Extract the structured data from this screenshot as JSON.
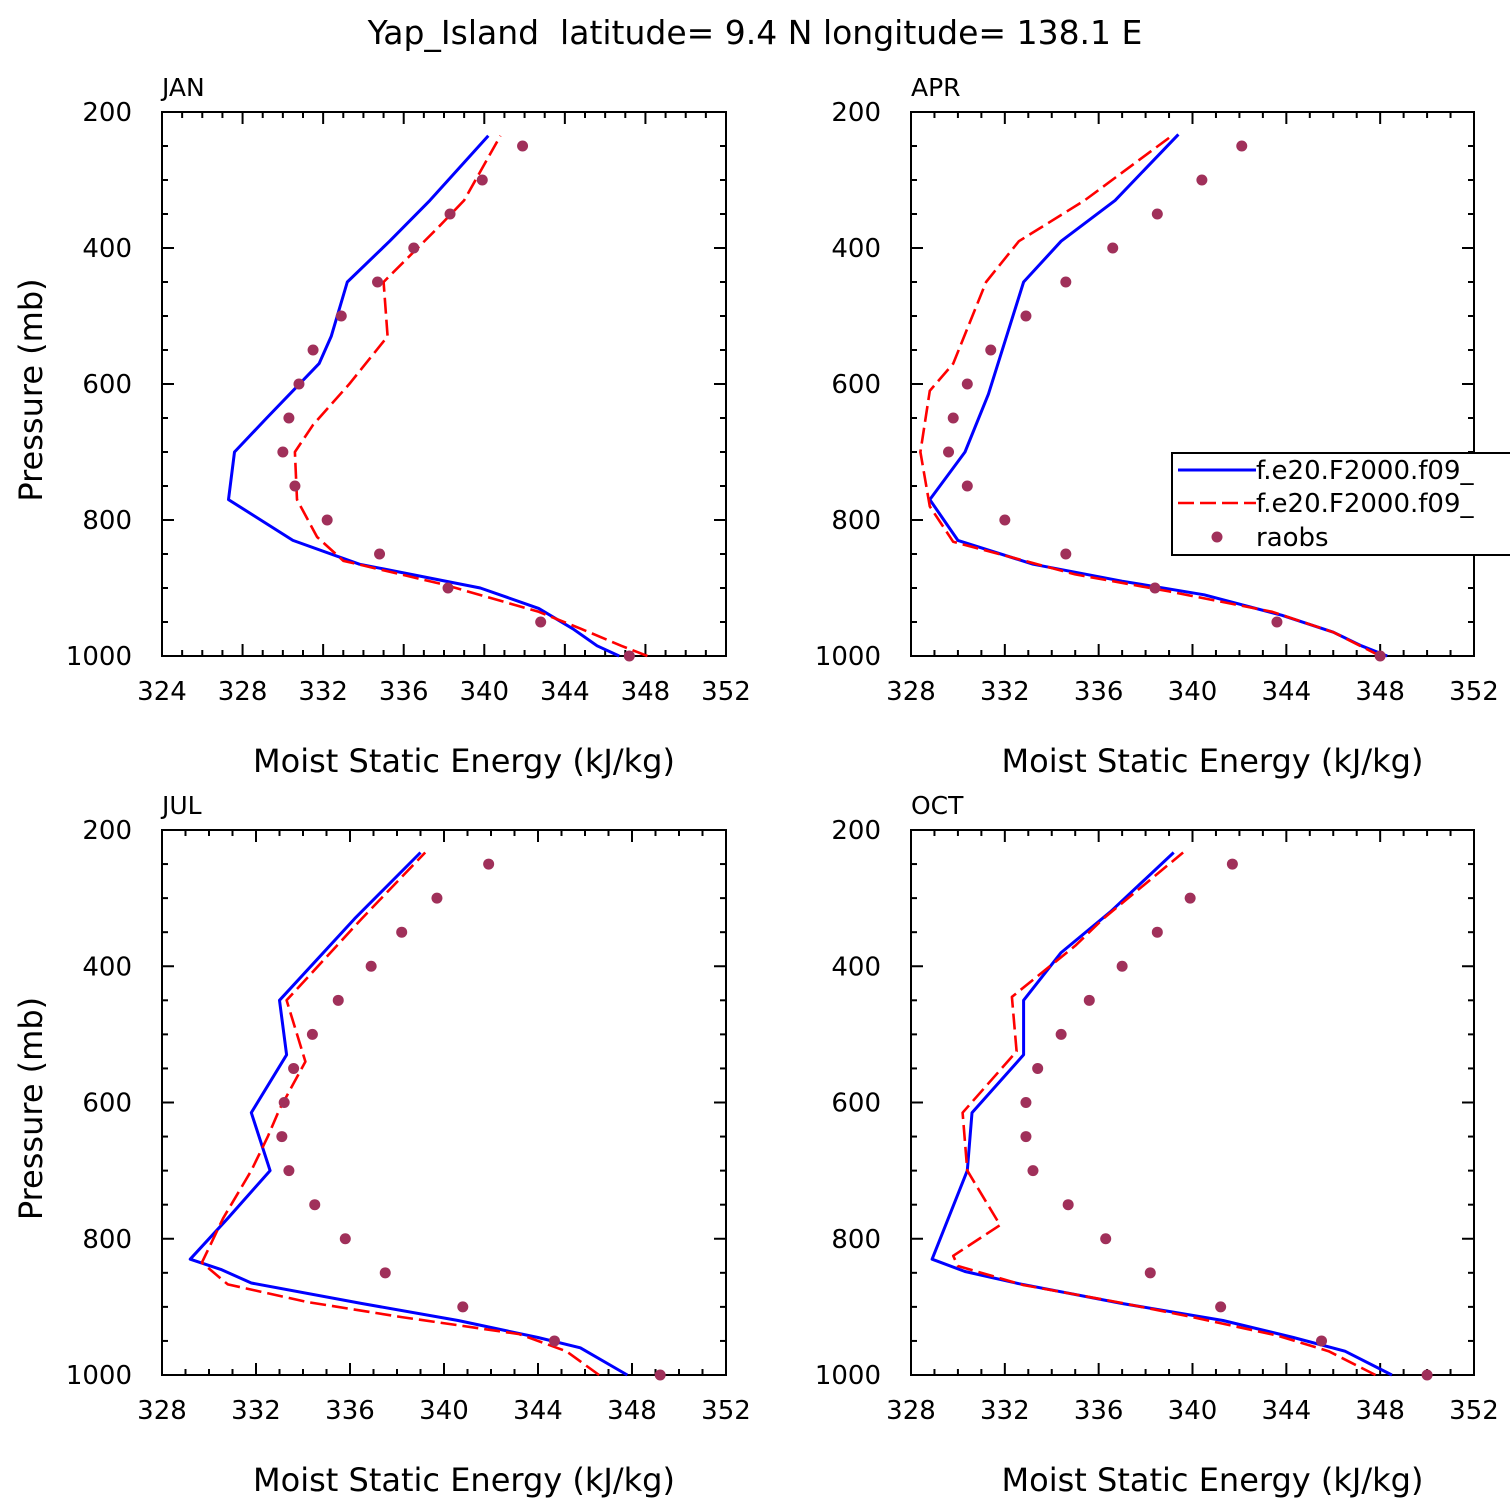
{
  "figure_title": "Yap_Island  latitude= 9.4 N longitude= 138.1 E",
  "colors": {
    "model1": "#0000ff",
    "model2": "#ff0000",
    "obs": "#a0305a"
  },
  "legend": {
    "placement": "right of APR panel",
    "entries": [
      "f.e20.F2000.f09_",
      "f.e20.F2000.f09_",
      "raobs"
    ]
  },
  "chart_data": [
    {
      "type": "line",
      "title": "JAN",
      "xlabel": "Moist Static Energy (kJ/kg)",
      "ylabel": "Pressure (mb)",
      "xlim": [
        324,
        352
      ],
      "ylim": [
        1000,
        200
      ],
      "xticks": [
        324,
        328,
        332,
        336,
        340,
        344,
        348,
        352
      ],
      "yticks": [
        200,
        400,
        600,
        800,
        1000
      ],
      "series": [
        {
          "name": "f.e20.F2000.f09_",
          "style": "solid",
          "points": [
            [
              346.7,
              1000
            ],
            [
              345.6,
              985
            ],
            [
              344.4,
              960
            ],
            [
              342.7,
              930
            ],
            [
              339.8,
              900
            ],
            [
              333.8,
              865
            ],
            [
              330.5,
              830
            ],
            [
              327.3,
              770
            ],
            [
              327.6,
              700
            ],
            [
              329.2,
              650
            ],
            [
              330.5,
              610
            ],
            [
              331.8,
              570
            ],
            [
              332.4,
              530
            ],
            [
              333.2,
              450
            ],
            [
              335.3,
              390
            ],
            [
              337.3,
              330
            ],
            [
              340.2,
              235
            ]
          ]
        },
        {
          "name": "f.e20.F2000.f09_",
          "style": "dashed",
          "points": [
            [
              348.1,
              1000
            ],
            [
              346.8,
              985
            ],
            [
              344.8,
              960
            ],
            [
              342.7,
              935
            ],
            [
              338.0,
              895
            ],
            [
              333.0,
              860
            ],
            [
              331.7,
              825
            ],
            [
              330.7,
              770
            ],
            [
              330.6,
              700
            ],
            [
              331.5,
              660
            ],
            [
              333.3,
              600
            ],
            [
              335.2,
              530
            ],
            [
              335.0,
              450
            ],
            [
              337.7,
              370
            ],
            [
              339.0,
              330
            ],
            [
              340.8,
              235
            ]
          ]
        },
        {
          "name": "raobs",
          "style": "dots",
          "points": [
            [
              347.2,
              1000
            ],
            [
              342.8,
              950
            ],
            [
              338.2,
              900
            ],
            [
              334.8,
              850
            ],
            [
              332.2,
              800
            ],
            [
              330.6,
              750
            ],
            [
              330.0,
              700
            ],
            [
              330.3,
              650
            ],
            [
              330.8,
              600
            ],
            [
              331.5,
              550
            ],
            [
              332.9,
              500
            ],
            [
              334.7,
              450
            ],
            [
              336.5,
              400
            ],
            [
              338.3,
              350
            ],
            [
              339.9,
              300
            ],
            [
              341.9,
              250
            ]
          ]
        }
      ]
    },
    {
      "type": "line",
      "title": "APR",
      "xlabel": "Moist Static Energy (kJ/kg)",
      "ylabel": "",
      "xlim": [
        328,
        352
      ],
      "ylim": [
        1000,
        200
      ],
      "xticks": [
        328,
        332,
        336,
        340,
        344,
        348,
        352
      ],
      "yticks": [
        200,
        400,
        600,
        800,
        1000
      ],
      "series": [
        {
          "name": "f.e20.F2000.f09_",
          "style": "solid",
          "points": [
            [
              348.3,
              1000
            ],
            [
              347.2,
              985
            ],
            [
              346.0,
              965
            ],
            [
              343.8,
              940
            ],
            [
              340.5,
              910
            ],
            [
              337.0,
              890
            ],
            [
              333.2,
              865
            ],
            [
              330.0,
              830
            ],
            [
              328.8,
              770
            ],
            [
              330.3,
              700
            ],
            [
              331.3,
              615
            ],
            [
              332.8,
              450
            ],
            [
              334.4,
              390
            ],
            [
              336.7,
              330
            ],
            [
              339.4,
              233
            ]
          ]
        },
        {
          "name": "f.e20.F2000.f09_",
          "style": "dashed",
          "points": [
            [
              348.0,
              1000
            ],
            [
              346.0,
              965
            ],
            [
              343.4,
              935
            ],
            [
              339.0,
              905
            ],
            [
              335.0,
              880
            ],
            [
              332.3,
              855
            ],
            [
              329.8,
              832
            ],
            [
              328.8,
              780
            ],
            [
              328.4,
              700
            ],
            [
              328.8,
              610
            ],
            [
              329.8,
              570
            ],
            [
              331.2,
              450
            ],
            [
              332.6,
              390
            ],
            [
              335.4,
              330
            ],
            [
              339.2,
              233
            ]
          ]
        },
        {
          "name": "raobs",
          "style": "dots",
          "points": [
            [
              348.0,
              1000
            ],
            [
              343.6,
              950
            ],
            [
              338.4,
              900
            ],
            [
              334.6,
              850
            ],
            [
              332.0,
              800
            ],
            [
              330.4,
              750
            ],
            [
              329.6,
              700
            ],
            [
              329.8,
              650
            ],
            [
              330.4,
              600
            ],
            [
              331.4,
              550
            ],
            [
              332.9,
              500
            ],
            [
              334.6,
              450
            ],
            [
              336.6,
              400
            ],
            [
              338.5,
              350
            ],
            [
              340.4,
              300
            ],
            [
              342.1,
              250
            ]
          ]
        }
      ]
    },
    {
      "type": "line",
      "title": "JUL",
      "xlabel": "Moist Static Energy (kJ/kg)",
      "ylabel": "Pressure (mb)",
      "xlim": [
        328,
        352
      ],
      "ylim": [
        1000,
        200
      ],
      "xticks": [
        328,
        332,
        336,
        340,
        344,
        348,
        352
      ],
      "yticks": [
        200,
        400,
        600,
        800,
        1000
      ],
      "series": [
        {
          "name": "f.e20.F2000.f09_",
          "style": "solid",
          "points": [
            [
              347.8,
              1000
            ],
            [
              345.8,
              960
            ],
            [
              344.0,
              945
            ],
            [
              340.6,
              920
            ],
            [
              336.5,
              895
            ],
            [
              331.8,
              865
            ],
            [
              330.5,
              845
            ],
            [
              329.2,
              830
            ],
            [
              330.8,
              770
            ],
            [
              332.6,
              700
            ],
            [
              331.8,
              615
            ],
            [
              333.3,
              530
            ],
            [
              333.0,
              450
            ],
            [
              336.2,
              330
            ],
            [
              339.0,
              233
            ]
          ]
        },
        {
          "name": "f.e20.F2000.f09_",
          "style": "dashed",
          "points": [
            [
              346.6,
              1000
            ],
            [
              345.2,
              965
            ],
            [
              343.2,
              940
            ],
            [
              338.2,
              915
            ],
            [
              334.2,
              893
            ],
            [
              330.8,
              867
            ],
            [
              329.7,
              835
            ],
            [
              330.6,
              770
            ],
            [
              331.8,
              700
            ],
            [
              332.5,
              650
            ],
            [
              333.0,
              610
            ],
            [
              334.1,
              540
            ],
            [
              333.3,
              450
            ],
            [
              336.5,
              330
            ],
            [
              339.2,
              233
            ]
          ]
        },
        {
          "name": "raobs",
          "style": "dots",
          "points": [
            [
              349.2,
              1000
            ],
            [
              344.7,
              950
            ],
            [
              340.8,
              900
            ],
            [
              337.5,
              850
            ],
            [
              335.8,
              800
            ],
            [
              334.5,
              750
            ],
            [
              333.4,
              700
            ],
            [
              333.1,
              650
            ],
            [
              333.2,
              600
            ],
            [
              333.6,
              550
            ],
            [
              334.4,
              500
            ],
            [
              335.5,
              450
            ],
            [
              336.9,
              400
            ],
            [
              338.2,
              350
            ],
            [
              339.7,
              300
            ],
            [
              341.9,
              250
            ]
          ]
        }
      ]
    },
    {
      "type": "line",
      "title": "OCT",
      "xlabel": "Moist Static Energy (kJ/kg)",
      "ylabel": "",
      "xlim": [
        328,
        352
      ],
      "ylim": [
        1000,
        200
      ],
      "xticks": [
        328,
        332,
        336,
        340,
        344,
        348,
        352
      ],
      "yticks": [
        200,
        400,
        600,
        800,
        1000
      ],
      "series": [
        {
          "name": "f.e20.F2000.f09_",
          "style": "solid",
          "points": [
            [
              348.5,
              1000
            ],
            [
              346.5,
              965
            ],
            [
              344.3,
              945
            ],
            [
              341.3,
              920
            ],
            [
              337.0,
              895
            ],
            [
              332.6,
              866
            ],
            [
              330.3,
              848
            ],
            [
              328.9,
              830
            ],
            [
              330.4,
              700
            ],
            [
              330.6,
              615
            ],
            [
              332.8,
              530
            ],
            [
              332.8,
              450
            ],
            [
              334.4,
              380
            ],
            [
              336.5,
              320
            ],
            [
              339.2,
              233
            ]
          ]
        },
        {
          "name": "f.e20.F2000.f09_",
          "style": "dashed",
          "points": [
            [
              347.8,
              1000
            ],
            [
              345.8,
              965
            ],
            [
              343.6,
              942
            ],
            [
              340.0,
              915
            ],
            [
              336.8,
              893
            ],
            [
              332.8,
              868
            ],
            [
              330.0,
              840
            ],
            [
              329.8,
              825
            ],
            [
              331.8,
              780
            ],
            [
              330.4,
              700
            ],
            [
              330.2,
              615
            ],
            [
              332.5,
              525
            ],
            [
              332.3,
              445
            ],
            [
              335.0,
              370
            ],
            [
              336.2,
              330
            ],
            [
              339.6,
              233
            ]
          ]
        },
        {
          "name": "raobs",
          "style": "dots",
          "points": [
            [
              350.0,
              1000
            ],
            [
              345.5,
              950
            ],
            [
              341.2,
              900
            ],
            [
              338.2,
              850
            ],
            [
              336.3,
              800
            ],
            [
              334.7,
              750
            ],
            [
              333.2,
              700
            ],
            [
              332.9,
              650
            ],
            [
              332.9,
              600
            ],
            [
              333.4,
              550
            ],
            [
              334.4,
              500
            ],
            [
              335.6,
              450
            ],
            [
              337.0,
              400
            ],
            [
              338.5,
              350
            ],
            [
              339.9,
              300
            ],
            [
              341.7,
              250
            ]
          ]
        }
      ]
    }
  ]
}
